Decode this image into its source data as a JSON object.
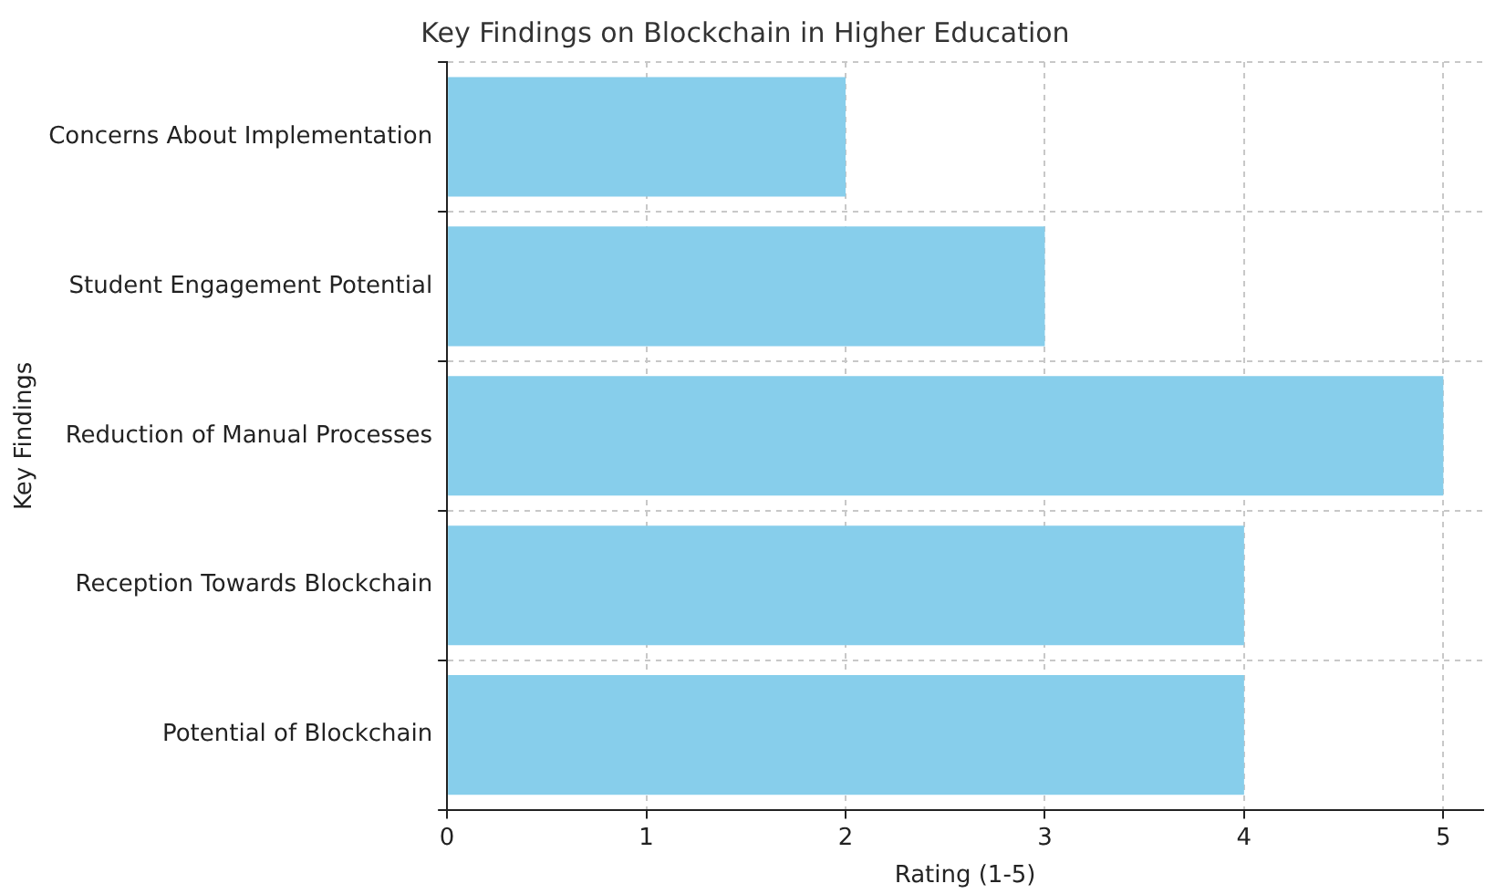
{
  "chart_data": {
    "type": "bar",
    "orientation": "horizontal",
    "title": "Key Findings on Blockchain in Higher Education",
    "xlabel": "Rating (1-5)",
    "ylabel": "Key Findings",
    "categories": [
      "Concerns About Implementation",
      "Student Engagement Potential",
      "Reduction of Manual Processes",
      "Reception Towards Blockchain",
      "Potential of Blockchain"
    ],
    "values": [
      2,
      3,
      5,
      4,
      4
    ],
    "color": "#87ceeb",
    "xlim": [
      0,
      5.2
    ],
    "xticks": [
      0,
      1,
      2,
      3,
      4,
      5
    ],
    "grid": true,
    "legend": false
  }
}
